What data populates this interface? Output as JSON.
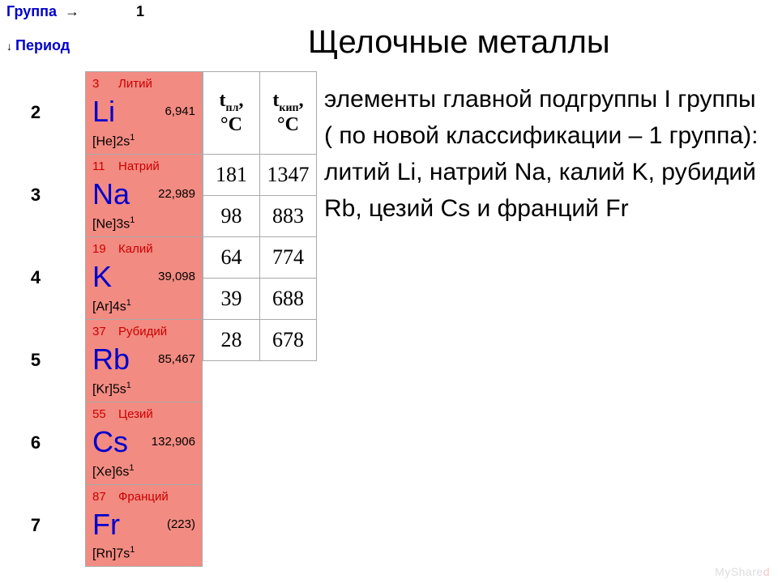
{
  "header": {
    "group_label": "Группа",
    "group_number": "1",
    "period_label": "Период"
  },
  "title": "Щелочные металлы",
  "description": "элементы главной подгруппы I группы ( по новой классификации – 1 группа): литий Li, натрий Na, калий K, рубидий Rb, цезий Cs и франций Fr",
  "periods": [
    "2",
    "3",
    "4",
    "5",
    "6",
    "7"
  ],
  "element_cell_bg": "#f28b82",
  "elements": [
    {
      "atomic": "3",
      "name": "Литий",
      "symbol": "Li",
      "mass": "6,941",
      "config_base": "[He]2s",
      "config_sup": "1"
    },
    {
      "atomic": "11",
      "name": "Натрий",
      "symbol": "Na",
      "mass": "22,989",
      "config_base": "[Ne]3s",
      "config_sup": "1"
    },
    {
      "atomic": "19",
      "name": "Калий",
      "symbol": "K",
      "mass": "39,098",
      "config_base": "[Ar]4s",
      "config_sup": "1"
    },
    {
      "atomic": "37",
      "name": "Рубидий",
      "symbol": "Rb",
      "mass": "85,467",
      "config_base": "[Kr]5s",
      "config_sup": "1"
    },
    {
      "atomic": "55",
      "name": "Цезий",
      "symbol": "Cs",
      "mass": "132,906",
      "config_base": "[Xe]6s",
      "config_sup": "1"
    },
    {
      "atomic": "87",
      "name": "Франций",
      "symbol": "Fr",
      "mass": "(223)",
      "config_base": "[Rn]7s",
      "config_sup": "1"
    }
  ],
  "table": {
    "header_melt_label_t": "t",
    "header_melt_label_sub": "пл",
    "header_boil_label_t": "t",
    "header_boil_label_sub": "кип",
    "unit": "°C",
    "rows": [
      {
        "melt": "181",
        "boil": "1347"
      },
      {
        "melt": "98",
        "boil": "883"
      },
      {
        "melt": "64",
        "boil": "774"
      },
      {
        "melt": "39",
        "boil": "688"
      },
      {
        "melt": "28",
        "boil": "678"
      }
    ]
  },
  "watermark": {
    "pre": "MyShare",
    "hl": "d"
  }
}
